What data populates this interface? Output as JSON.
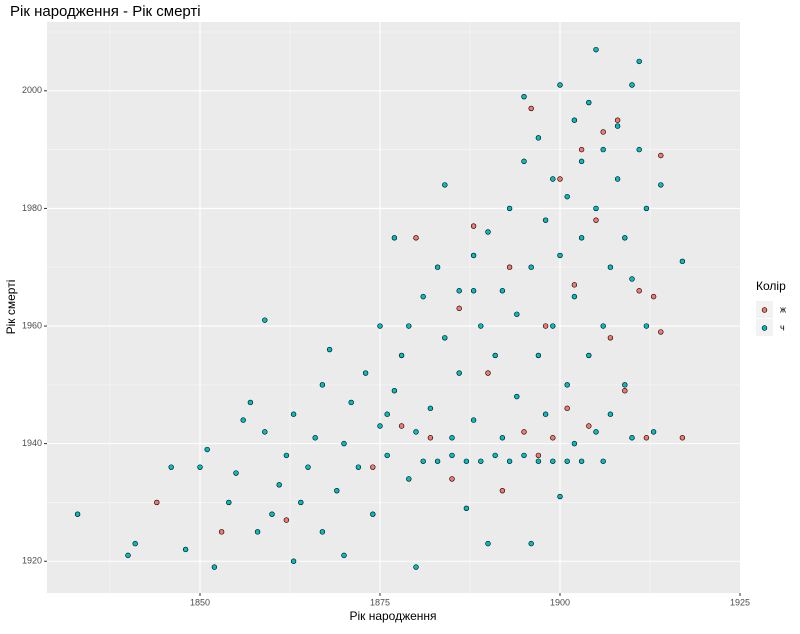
{
  "chart_data": {
    "type": "scatter",
    "title": "Рік народження - Рік смерті",
    "x_label": "Рік народження",
    "y_label": "Рік смерті",
    "legend_title": "Колір",
    "xlim": [
      1828.75,
      1925
    ],
    "xticks": [
      1850,
      1875,
      1900,
      1925
    ],
    "ylim": [
      1914.6,
      2011.7
    ],
    "yticks": [
      1920,
      1940,
      1960,
      1980,
      2000
    ],
    "grid": true,
    "legend_position": "right",
    "series": [
      {
        "name": "ж",
        "color": "#F8766D",
        "x": [
          1844,
          1853,
          1862,
          1874,
          1878,
          1880,
          1882,
          1885,
          1886,
          1888,
          1890,
          1892,
          1893,
          1895,
          1896,
          1897,
          1898,
          1899,
          1900,
          1901,
          1902,
          1903,
          1904,
          1905,
          1906,
          1907,
          1908,
          1909,
          1911,
          1912,
          1913,
          1914,
          1914,
          1917
        ],
        "values": [
          1930,
          1925,
          1927,
          1936,
          1943,
          1975,
          1941,
          1934,
          1963,
          1977,
          1952,
          1932,
          1970,
          1942,
          1997,
          1938,
          1960,
          1941,
          1985,
          1946,
          1967,
          1990,
          1943,
          1978,
          1993,
          1958,
          1995,
          1949,
          1966,
          1941,
          1965,
          1989,
          1959,
          1941
        ]
      },
      {
        "name": "ч",
        "color": "#00BFC4",
        "x": [
          1833,
          1840,
          1841,
          1846,
          1848,
          1850,
          1851,
          1852,
          1854,
          1855,
          1856,
          1857,
          1858,
          1859,
          1859,
          1860,
          1861,
          1862,
          1863,
          1863,
          1864,
          1865,
          1866,
          1867,
          1867,
          1868,
          1869,
          1870,
          1870,
          1871,
          1872,
          1873,
          1874,
          1875,
          1875,
          1876,
          1877,
          1877,
          1878,
          1879,
          1880,
          1880,
          1881,
          1881,
          1882,
          1883,
          1883,
          1884,
          1884,
          1885,
          1885,
          1886,
          1886,
          1887,
          1887,
          1888,
          1888,
          1889,
          1889,
          1890,
          1890,
          1891,
          1891,
          1892,
          1892,
          1893,
          1893,
          1894,
          1894,
          1895,
          1895,
          1896,
          1896,
          1897,
          1897,
          1897,
          1898,
          1898,
          1899,
          1899,
          1899,
          1900,
          1900,
          1900,
          1901,
          1901,
          1901,
          1902,
          1902,
          1902,
          1903,
          1903,
          1903,
          1904,
          1904,
          1905,
          1905,
          1905,
          1906,
          1906,
          1906,
          1907,
          1907,
          1908,
          1908,
          1909,
          1909,
          1910,
          1910,
          1910,
          1911,
          1911,
          1912,
          1913,
          1914,
          1917,
          1912,
          1895,
          1888,
          1879,
          1876
        ],
        "values": [
          1928,
          1921,
          1923,
          1936,
          1922,
          1936,
          1939,
          1919,
          1930,
          1935,
          1944,
          1947,
          1925,
          1942,
          1961,
          1928,
          1933,
          1938,
          1920,
          1945,
          1930,
          1936,
          1941,
          1950,
          1925,
          1956,
          1932,
          1940,
          1921,
          1947,
          1936,
          1952,
          1928,
          1943,
          1960,
          1938,
          1949,
          1975,
          1955,
          1934,
          1919,
          1942,
          1965,
          1937,
          1946,
          1970,
          1937,
          1984,
          1958,
          1938,
          1941,
          1966,
          1952,
          1937,
          1929,
          1972,
          1944,
          1960,
          1937,
          1976,
          1923,
          1938,
          1955,
          1966,
          1941,
          1980,
          1937,
          1962,
          1948,
          1988,
          1938,
          1970,
          1923,
          1992,
          1955,
          1937,
          1978,
          1945,
          1985,
          1960,
          1937,
          2001,
          1972,
          1931,
          1982,
          1950,
          1937,
          1995,
          1965,
          1940,
          1988,
          1975,
          1937,
          1998,
          1955,
          2007,
          1980,
          1942,
          1990,
          1960,
          1937,
          1970,
          1945,
          1994,
          1985,
          1975,
          1950,
          2001,
          1968,
          1941,
          2005,
          1990,
          1980,
          1942,
          1984,
          1971,
          1960,
          1999,
          1966,
          1960,
          1945
        ]
      }
    ]
  }
}
